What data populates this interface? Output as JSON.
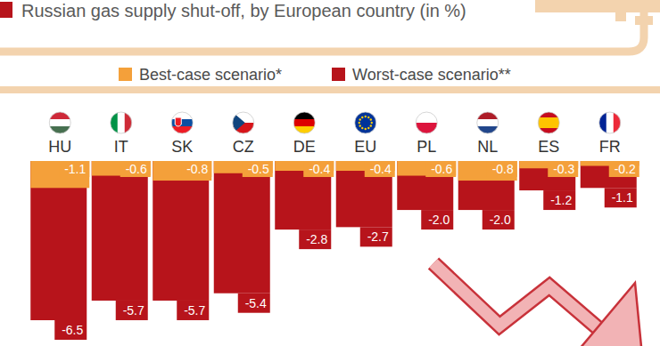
{
  "chart_data": {
    "type": "bar",
    "title": "Russian gas supply shut-off, by European country (in %)",
    "categories": [
      "HU",
      "IT",
      "SK",
      "CZ",
      "DE",
      "EU",
      "PL",
      "NL",
      "ES",
      "FR"
    ],
    "series": [
      {
        "name": "Best-case scenario*",
        "color": "#f4a03a",
        "values": [
          -1.1,
          -0.6,
          -0.8,
          -0.5,
          -0.4,
          -0.4,
          -0.6,
          -0.8,
          -0.3,
          -0.2
        ],
        "value_labels": [
          "-1.1",
          "-0.6",
          "-0.8",
          "-0.5",
          "-0.4",
          "-0.4",
          "-0.6",
          "-0.8",
          "-0.3",
          "-0.2"
        ]
      },
      {
        "name": "Worst-case scenario**",
        "color": "#b7141b",
        "values": [
          -6.5,
          -5.7,
          -5.7,
          -5.4,
          -2.8,
          -2.7,
          -2.0,
          -2.0,
          -1.2,
          -1.1
        ],
        "value_labels": [
          "-6.5",
          "-5.7",
          "-5.7",
          "-5.4",
          "-2.8",
          "-2.7",
          "-2.0",
          "-2.0",
          "-1.2",
          "-1.1"
        ]
      }
    ],
    "ylim": [
      -6.5,
      0
    ],
    "stacked": false,
    "data_labels": true,
    "tick_labels": "x",
    "legend": "top"
  }
}
